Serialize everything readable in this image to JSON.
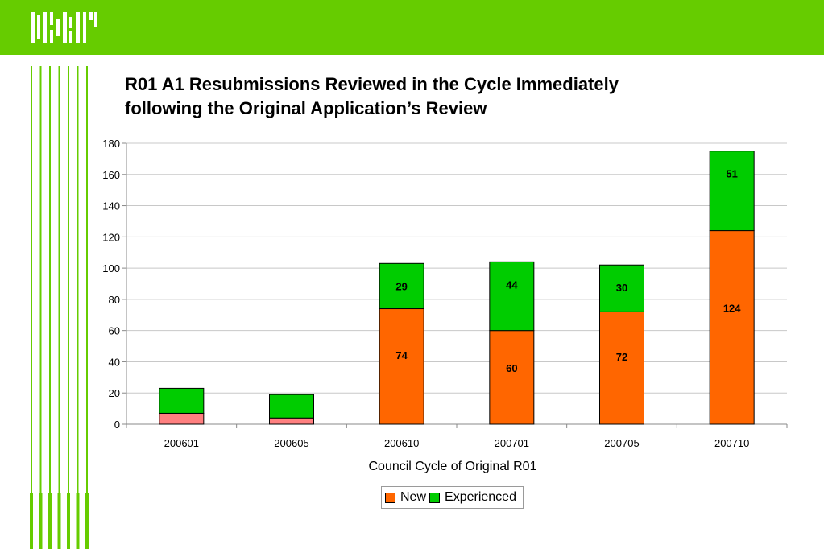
{
  "colors": {
    "brand": "#66cc00",
    "new": "#ff6600",
    "new_light": "#ff8080",
    "experienced": "#00cc00",
    "side_lines": "#66cc00"
  },
  "header": {
    "logo": "NSR-logo-icon"
  },
  "chart_data": {
    "type": "bar",
    "stacked": true,
    "title_lines": [
      "R01 A1 Resubmissions Reviewed in the Cycle Immediately",
      "following the Original Application’s Review"
    ],
    "xlabel": "Council Cycle of Original R01",
    "ylabel": "",
    "ylim": [
      0,
      180
    ],
    "yticks": [
      "0",
      "20",
      "40",
      "60",
      "80",
      "100",
      "120",
      "140",
      "160",
      "180"
    ],
    "categories": [
      "200601",
      "200605",
      "200610",
      "200701",
      "200705",
      "200710"
    ],
    "series": [
      {
        "name": "New",
        "values": [
          7,
          4,
          74,
          60,
          72,
          124
        ],
        "labels": [
          "",
          "",
          "74",
          "60",
          "72",
          "124"
        ]
      },
      {
        "name": "Experienced",
        "values": [
          16,
          15,
          29,
          44,
          30,
          51
        ],
        "labels": [
          "",
          "",
          "29",
          "44",
          "30",
          "51"
        ]
      }
    ],
    "grid": true,
    "legend_position": "bottom-center"
  }
}
